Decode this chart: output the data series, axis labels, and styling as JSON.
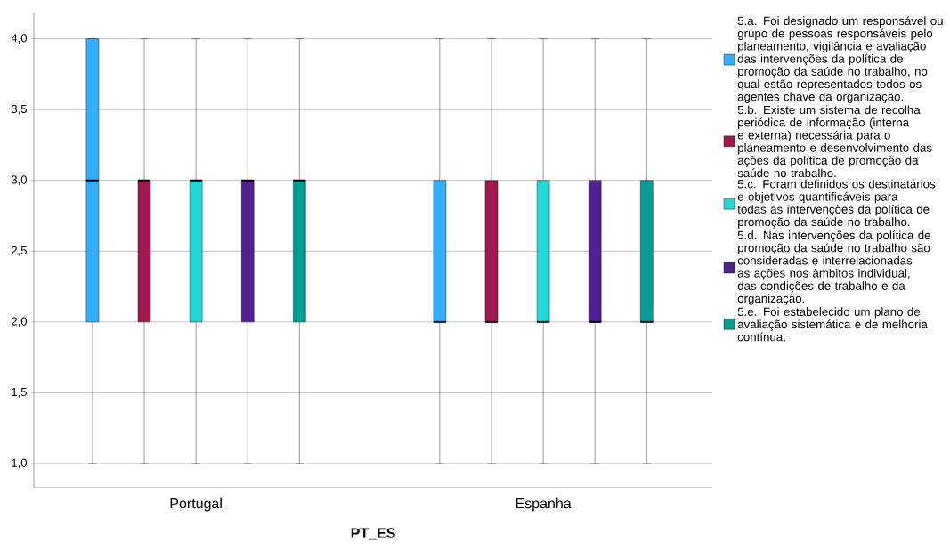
{
  "chart_data": {
    "type": "box",
    "xlabel": "PT_ES",
    "categories": [
      "Portugal",
      "Espanha"
    ],
    "ylim": [
      0.83,
      4.18
    ],
    "yticks": [
      {
        "value": 1,
        "label": "1,0"
      },
      {
        "value": 1.5,
        "label": "1,5"
      },
      {
        "value": 2,
        "label": "2,0"
      },
      {
        "value": 2.5,
        "label": "2,5"
      },
      {
        "value": 3,
        "label": "3,0"
      },
      {
        "value": 3.5,
        "label": "3,5"
      },
      {
        "value": 4,
        "label": "4,0"
      }
    ],
    "grid": "y",
    "legend": "right",
    "series": [
      {
        "name": "5.a. Foi designado um responsável ou grupo de pessoas responsáveis pelo planeamento, vigilância e avaliação das intervenções da política de promoção da saúde no trabalho, no qual estão representados todos os agentes chave da organização.",
        "color": "#33adff",
        "boxes": [
          {
            "low": 1,
            "q1": 2,
            "median": 3,
            "q3": 4,
            "high": 4
          },
          {
            "low": 1,
            "q1": 2,
            "median": 2,
            "q3": 3,
            "high": 4
          }
        ]
      },
      {
        "name": "5.b. Existe um sistema de recolha periódica de informação (interna e externa) necessária para o planeamento e desenvolvimento das ações da política de promoção da saúde no trabalho.",
        "color": "#a3194f",
        "boxes": [
          {
            "low": 1,
            "q1": 2,
            "median": 3,
            "q3": 3,
            "high": 4
          },
          {
            "low": 1,
            "q1": 2,
            "median": 2,
            "q3": 3,
            "high": 4
          }
        ]
      },
      {
        "name": "5.c. Foram definidos os destinatários e objetivos quantificáveis para todas as intervenções da política de promoção da saúde no trabalho.",
        "color": "#24d6d6",
        "boxes": [
          {
            "low": 1,
            "q1": 2,
            "median": 3,
            "q3": 3,
            "high": 4
          },
          {
            "low": 1,
            "q1": 2,
            "median": 2,
            "q3": 3,
            "high": 4
          }
        ]
      },
      {
        "name": "5.d. Nas intervenções da política de promoção da saúde no trabalho são consideradas e interrelacionadas as ações nos âmbitos individual, das condições de trabalho e da organização.",
        "color": "#52208f",
        "boxes": [
          {
            "low": 1,
            "q1": 2,
            "median": 3,
            "q3": 3,
            "high": 4
          },
          {
            "low": 1,
            "q1": 2,
            "median": 2,
            "q3": 3,
            "high": 4
          }
        ]
      },
      {
        "name": "5.e. Foi estabelecido um plano de avaliação sistemática e de melhoria contínua.",
        "color": "#009e96",
        "boxes": [
          {
            "low": 1,
            "q1": 2,
            "median": 3,
            "q3": 3,
            "high": 4
          },
          {
            "low": 1,
            "q1": 2,
            "median": 2,
            "q3": 3,
            "high": 4
          }
        ]
      }
    ]
  }
}
